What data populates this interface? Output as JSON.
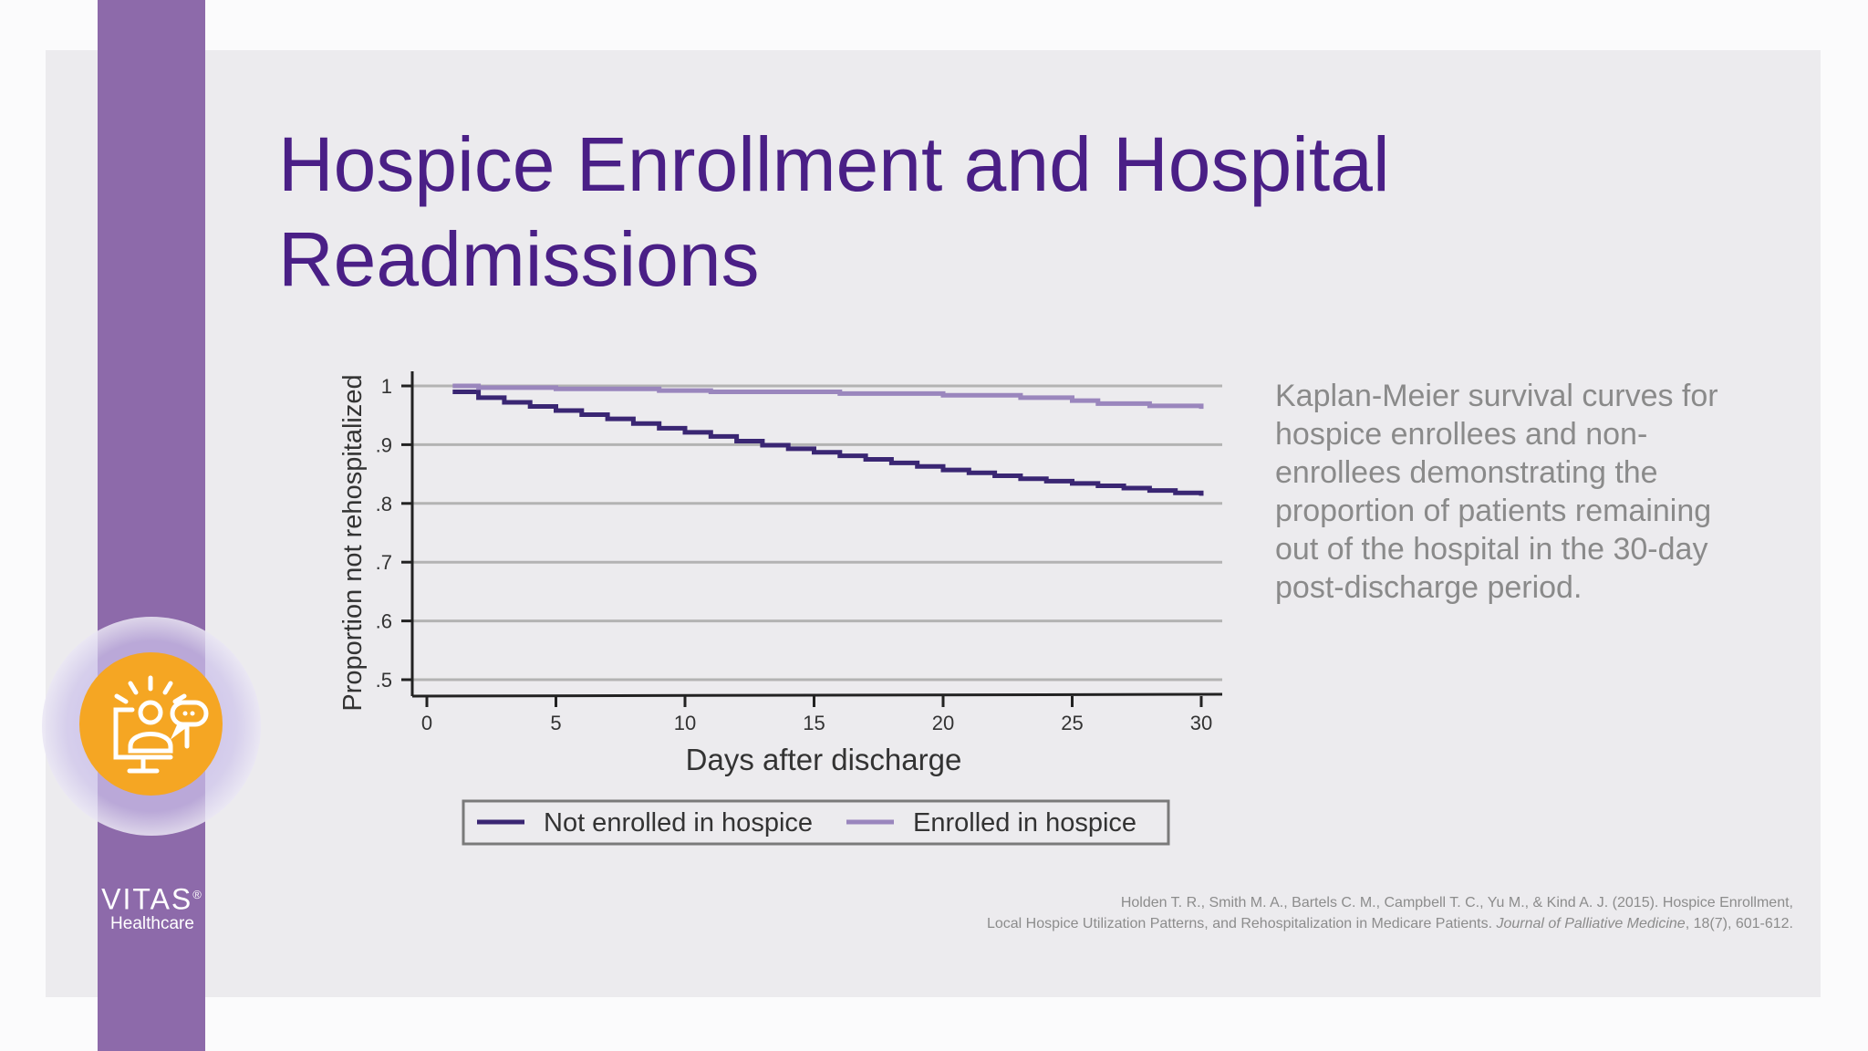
{
  "slide": {
    "title_line1": "Hospice Enrollment and Hospital",
    "title_line2": "Readmissions",
    "description": "Kaplan-Meier survival curves for hospice enrollees and non-enrollees demonstrating the proportion of patients remaining out of the hospital in the 30-day post-discharge period.",
    "citation_line1": "Holden T. R., Smith M. A., Bartels C. M., Campbell T. C., Yu M., & Kind A. J. (2015). Hospice Enrollment,",
    "citation_line2_plain": "Local Hospice Utilization Patterns, and Rehospitalization in Medicare Patients. ",
    "citation_journal": "Journal of Palliative Medicine",
    "citation_tail": ", 18(7), 601-612."
  },
  "brand": {
    "logo_main": "VITAS",
    "logo_trademark": "®",
    "logo_sub": "Healthcare",
    "stripe_color": "#8d6aaa",
    "badge_color": "#f5a623",
    "title_color": "#4a1f86",
    "icon": "person-at-monitor-with-chat-icon"
  },
  "chart_data": {
    "type": "line",
    "step": true,
    "xlabel": "Days after discharge",
    "ylabel": "Proportion not rehospitalized",
    "xlim": [
      0,
      30
    ],
    "ylim": [
      0.5,
      1.0
    ],
    "x_ticks": [
      "0",
      "5",
      "10",
      "15",
      "20",
      "25",
      "30"
    ],
    "y_ticks": [
      ".5",
      ".6",
      ".7",
      ".8",
      ".9",
      "1"
    ],
    "grid": true,
    "legend_position": "bottom",
    "series": [
      {
        "name": "Not enrolled in hospice",
        "color": "#3a2673",
        "x": [
          1,
          2,
          3,
          4,
          5,
          6,
          7,
          8,
          9,
          10,
          11,
          12,
          13,
          14,
          15,
          16,
          17,
          18,
          19,
          20,
          21,
          22,
          23,
          24,
          25,
          26,
          27,
          28,
          29,
          30
        ],
        "y": [
          0.99,
          0.98,
          0.972,
          0.965,
          0.958,
          0.951,
          0.944,
          0.936,
          0.928,
          0.921,
          0.914,
          0.906,
          0.899,
          0.893,
          0.887,
          0.881,
          0.875,
          0.869,
          0.863,
          0.857,
          0.852,
          0.847,
          0.842,
          0.838,
          0.834,
          0.83,
          0.826,
          0.822,
          0.818,
          0.813
        ]
      },
      {
        "name": "Enrolled in hospice",
        "color": "#9a86bd",
        "x": [
          1,
          2,
          5,
          9,
          11,
          13,
          16,
          20,
          23,
          25,
          26,
          28,
          30
        ],
        "y": [
          1.0,
          0.997,
          0.995,
          0.992,
          0.99,
          0.99,
          0.987,
          0.984,
          0.98,
          0.975,
          0.97,
          0.966,
          0.961
        ]
      }
    ]
  }
}
